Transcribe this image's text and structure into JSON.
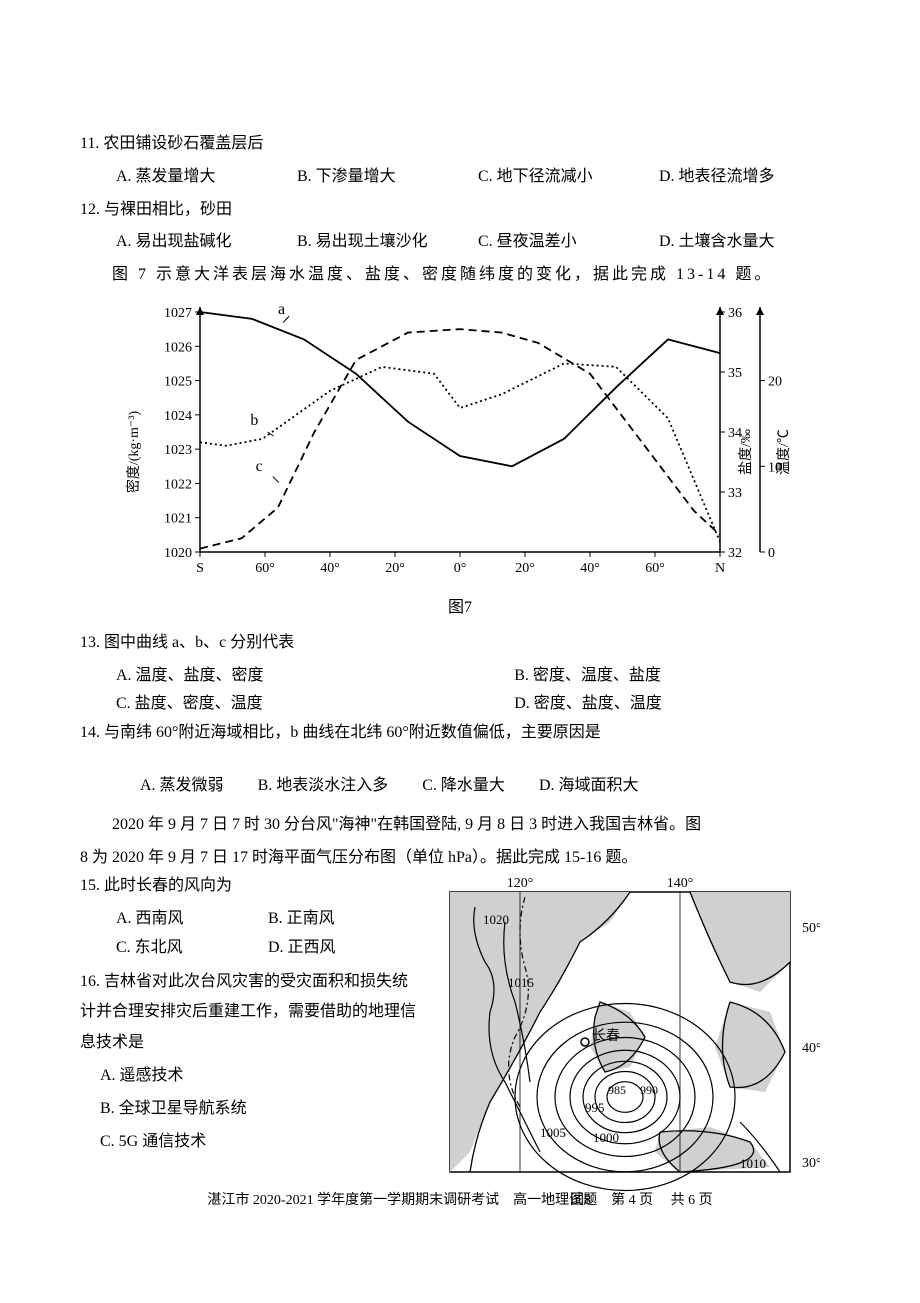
{
  "q11": {
    "num": "11.",
    "text": "农田铺设砂石覆盖层后",
    "opts": {
      "A": "A. 蒸发量增大",
      "B": "B. 下渗量增大",
      "C": "C. 地下径流减小",
      "D": "D. 地表径流增多"
    }
  },
  "q12": {
    "num": "12.",
    "text": "与裸田相比，砂田",
    "opts": {
      "A": "A. 易出现盐碱化",
      "B": "B. 易出现土壤沙化",
      "C": "C. 昼夜温差小",
      "D": "D. 土壤含水量大"
    }
  },
  "intro7": "图 7 示意大洋表层海水温度、盐度、密度随纬度的变化，据此完成 13-14 题。",
  "chart7": {
    "caption": "图7",
    "left_axis": {
      "label": "密度/(kg·m⁻³)",
      "ticks": [
        1020,
        1021,
        1022,
        1023,
        1024,
        1025,
        1026,
        1027
      ]
    },
    "right_axis1": {
      "label": "盐度/‰",
      "ticks": [
        32,
        33,
        34,
        35,
        36
      ]
    },
    "right_axis2": {
      "label": "温度/℃",
      "ticks": [
        0,
        10,
        20
      ]
    },
    "x_ticks": [
      "S",
      "60°",
      "40°",
      "20°",
      "0°",
      "20°",
      "40°",
      "60°",
      "N"
    ],
    "series": {
      "a": {
        "label": "a",
        "style": "solid",
        "color": "#000000",
        "points": [
          [
            0,
            1027
          ],
          [
            10,
            1026.8
          ],
          [
            20,
            1026.2
          ],
          [
            30,
            1025.2
          ],
          [
            40,
            1023.8
          ],
          [
            50,
            1022.8
          ],
          [
            60,
            1022.5
          ],
          [
            70,
            1023.3
          ],
          [
            80,
            1024.8
          ],
          [
            90,
            1026.2
          ],
          [
            100,
            1025.8
          ]
        ]
      },
      "b": {
        "label": "b",
        "style": "dotted",
        "color": "#000000",
        "points": [
          [
            0,
            1023.2
          ],
          [
            5,
            1023.1
          ],
          [
            12,
            1023.3
          ],
          [
            25,
            1024.7
          ],
          [
            35,
            1025.4
          ],
          [
            45,
            1025.2
          ],
          [
            50,
            1024.2
          ],
          [
            58,
            1024.6
          ],
          [
            70,
            1025.5
          ],
          [
            80,
            1025.4
          ],
          [
            90,
            1023.9
          ],
          [
            100,
            1020.3
          ]
        ]
      },
      "c": {
        "label": "c",
        "style": "dashed",
        "color": "#000000",
        "points": [
          [
            0,
            1020.1
          ],
          [
            8,
            1020.4
          ],
          [
            15,
            1021.3
          ],
          [
            22,
            1023.5
          ],
          [
            30,
            1025.6
          ],
          [
            40,
            1026.4
          ],
          [
            50,
            1026.5
          ],
          [
            58,
            1026.4
          ],
          [
            65,
            1026.1
          ],
          [
            75,
            1025.2
          ],
          [
            85,
            1023.2
          ],
          [
            95,
            1021.2
          ],
          [
            100,
            1020.5
          ]
        ]
      }
    },
    "colors": {
      "axis": "#000000",
      "bg": "#ffffff"
    }
  },
  "q13": {
    "num": "13.",
    "text": "图中曲线 a、b、c 分别代表",
    "opts": {
      "A": "A. 温度、盐度、密度",
      "B": "B. 密度、温度、盐度",
      "C": "C. 盐度、密度、温度",
      "D": "D. 密度、盐度、温度"
    }
  },
  "q14": {
    "num": "14.",
    "text": "与南纬 60°附近海域相比，b 曲线在北纬 60°附近数值偏低，主要原因是",
    "opts": {
      "A": "A. 蒸发微弱",
      "B": "B. 地表淡水注入多",
      "C": "C. 降水量大",
      "D": "D. 海域面积大"
    }
  },
  "intro8a": "2020 年 9 月 7 日 7 时 30 分台风\"海神\"在韩国登陆, 9 月 8 日 3 时进入我国吉林省。图",
  "intro8b": "8 为 2020 年 9 月 7 日 17 时海平面气压分布图（单位 hPa）。据此完成 15-16 题。",
  "q15": {
    "num": "15.",
    "text": "此时长春的风向为",
    "opts": {
      "A": "A. 西南风",
      "B": "B. 正南风",
      "C": "C. 东北风",
      "D": "D. 正西风"
    }
  },
  "q16": {
    "num": "16.",
    "text": "吉林省对此次台风灾害的受灾面积和损失统计并合理安排灾后重建工作，需要借助的地理信息技术是",
    "opts": {
      "A": "A. 遥感技术",
      "B": "B. 全球卫星导航系统",
      "C": "C. 5G 通信技术"
    }
  },
  "map8": {
    "caption": "图8",
    "lon_labels": [
      "120°",
      "140°"
    ],
    "lat_labels": [
      "50°",
      "40°",
      "30°"
    ],
    "city": "长春",
    "isobars": [
      "1020",
      "1015",
      "1005",
      "1000",
      "995",
      "990",
      "985",
      "1010"
    ],
    "colors": {
      "land": "#d0d0d0",
      "line": "#000000",
      "bg": "#ffffff"
    }
  },
  "footer": "湛江市 2020-2021 学年度第一学期期末调研考试　高一地理试题　第 4 页　 共 6 页"
}
